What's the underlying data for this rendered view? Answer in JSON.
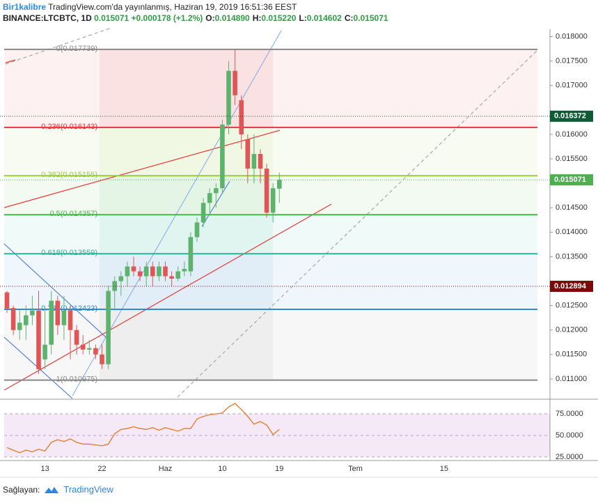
{
  "header": {
    "author": "Bir1kalibre",
    "published": "TradingView.com'da yayınlanmış, Haziran 19, 2019 16:51:36 EEST",
    "symbol": "BINANCE:LTCBTC, 1D",
    "last": "0.015071",
    "change": "+0.000178 (+1.2%)",
    "ohlc": [
      {
        "key": "O:",
        "value": "0.014890"
      },
      {
        "key": "H:",
        "value": "0.015220"
      },
      {
        "key": "L:",
        "value": "0.014602"
      },
      {
        "key": "C:",
        "value": "0.015071"
      }
    ]
  },
  "footer": {
    "provider": "Sağlayan:",
    "brand": "TradingView"
  },
  "chart_data": {
    "type": "candlestick",
    "categories": [
      null,
      null,
      null,
      null,
      null,
      null,
      "13",
      null,
      null,
      null,
      null,
      null,
      null,
      null,
      null,
      "22",
      null,
      null,
      null,
      null,
      null,
      null,
      null,
      null,
      null,
      "Haz",
      null,
      null,
      null,
      null,
      null,
      null,
      null,
      null,
      "10",
      null,
      null,
      null,
      null,
      null,
      null,
      null,
      null,
      "19",
      null,
      null,
      null,
      null,
      null,
      null,
      null,
      null,
      null,
      null,
      null,
      "Tem",
      null,
      null,
      null,
      null,
      null,
      null,
      null,
      null,
      null,
      null,
      null,
      null,
      null,
      "15"
    ],
    "open": [
      0.01277,
      0.01245,
      0.012,
      0.0121,
      0.0123,
      0.0124,
      0.0114,
      0.0117,
      0.0126,
      0.0121,
      0.0124,
      0.012,
      0.0117,
      0.0116,
      0.01163,
      0.0115,
      0.0113,
      0.0128,
      0.013,
      0.0131,
      0.0133,
      0.0132,
      0.0131,
      0.0133,
      0.0131,
      0.0133,
      0.0131,
      0.01305,
      0.0132,
      0.0132,
      0.0139,
      0.0142,
      0.0146,
      0.0148,
      0.0149,
      0.0162,
      0.0173,
      0.0167,
      0.0159,
      0.0153,
      0.0156,
      0.0153,
      0.0144,
      0.01489,
      null,
      null,
      null,
      null,
      null,
      null,
      null,
      null,
      null,
      null,
      null,
      null,
      null,
      null,
      null,
      null,
      null,
      null,
      null,
      null,
      null,
      null,
      null,
      null,
      null,
      null
    ],
    "high": [
      0.0128,
      0.0125,
      0.0124,
      0.0125,
      0.0127,
      0.0128,
      0.0124,
      0.0128,
      0.0127,
      0.0127,
      0.0125,
      0.0121,
      0.0119,
      0.0118,
      0.0117,
      0.0117,
      0.0129,
      0.0131,
      0.0132,
      0.0134,
      0.0135,
      0.0133,
      0.0134,
      0.0134,
      0.0134,
      0.0134,
      0.0132,
      0.0133,
      0.0134,
      0.014,
      0.0143,
      0.0147,
      0.0149,
      0.015,
      0.0163,
      0.0175,
      0.017739,
      0.0168,
      0.016,
      0.016,
      0.0157,
      0.0154,
      0.015,
      0.01522,
      null,
      null,
      null,
      null,
      null,
      null,
      null,
      null,
      null,
      null,
      null,
      null,
      null,
      null,
      null,
      null,
      null,
      null,
      null,
      null,
      null,
      null,
      null,
      null,
      null,
      null
    ],
    "low": [
      0.01235,
      0.0119,
      0.0118,
      0.0118,
      0.0121,
      0.0111,
      0.0112,
      0.0115,
      0.0119,
      0.0118,
      0.0114,
      0.0115,
      0.0115,
      0.0115,
      0.0114,
      0.0112,
      0.0112,
      0.0124,
      0.0127,
      0.0129,
      0.0131,
      0.013,
      0.0129,
      0.0129,
      0.013,
      0.013,
      0.0129,
      0.013,
      0.0131,
      0.0131,
      0.0138,
      0.0141,
      0.0144,
      0.0145,
      0.0148,
      0.016,
      0.0166,
      0.0157,
      0.015,
      0.015,
      0.015,
      0.0143,
      0.0142,
      0.014602,
      null,
      null,
      null,
      null,
      null,
      null,
      null,
      null,
      null,
      null,
      null,
      null,
      null,
      null,
      null,
      null,
      null,
      null,
      null,
      null,
      null,
      null,
      null,
      null,
      null,
      null
    ],
    "close": [
      0.01244,
      0.012,
      0.01215,
      0.0123,
      0.0124,
      0.0112,
      0.0117,
      0.0126,
      0.0121,
      0.0124,
      0.012,
      0.0117,
      0.0116,
      0.01163,
      0.0115,
      0.0113,
      0.0128,
      0.013,
      0.0131,
      0.0133,
      0.0132,
      0.0131,
      0.0133,
      0.0131,
      0.0133,
      0.0131,
      0.01305,
      0.0132,
      0.01325,
      0.0139,
      0.0142,
      0.0146,
      0.0148,
      0.0149,
      0.0162,
      0.0173,
      0.0168,
      0.016,
      0.0153,
      0.0156,
      0.0153,
      0.0144,
      0.0149,
      0.015071,
      null,
      null,
      null,
      null,
      null,
      null,
      null,
      null,
      null,
      null,
      null,
      null,
      null,
      null,
      null,
      null,
      null,
      null,
      null,
      null,
      null,
      null,
      null,
      null,
      null,
      null
    ],
    "up_color": "#5db36e",
    "down_color": "#e05555",
    "ylim": [
      0.0106,
      0.01815
    ],
    "yticks": [
      {
        "value": 0.018,
        "label": "0.018000"
      },
      {
        "value": 0.0175,
        "label": "0.017500"
      },
      {
        "value": 0.017,
        "label": "0.017000"
      },
      {
        "value": 0.016,
        "label": "0.016000"
      },
      {
        "value": 0.0155,
        "label": "0.015500"
      },
      {
        "value": 0.0145,
        "label": "0.014500"
      },
      {
        "value": 0.014,
        "label": "0.014000"
      },
      {
        "value": 0.0135,
        "label": "0.013500"
      },
      {
        "value": 0.0125,
        "label": "0.012500"
      },
      {
        "value": 0.012,
        "label": "0.012000"
      },
      {
        "value": 0.0115,
        "label": "0.011500"
      },
      {
        "value": 0.011,
        "label": "0.011000"
      }
    ],
    "fib_levels": [
      {
        "label": "0(0.017739)",
        "value": 0.017739,
        "color": "#888888"
      },
      {
        "label": "0.236(0.016143)",
        "value": 0.016143,
        "color": "#e53935"
      },
      {
        "label": "0.382(0.015155)",
        "value": 0.015155,
        "color": "#9ccc3c"
      },
      {
        "label": "0.5(0.014357)",
        "value": 0.014357,
        "color": "#43b947"
      },
      {
        "label": "0.618(0.013559)",
        "value": 0.013559,
        "color": "#26b59a"
      },
      {
        "label": "0.786(0.012423)",
        "value": 0.012423,
        "color": "#2e8bd0"
      },
      {
        "label": "1(0.010975)",
        "value": 0.010975,
        "color": "#888888"
      }
    ],
    "price_badges": [
      {
        "value": 0.016372,
        "color": "#0d5c36"
      },
      {
        "value": 0.015071,
        "color": "#4caf50"
      },
      {
        "value": 0.012894,
        "color": "#7b0a0a"
      }
    ],
    "rsi": {
      "values": [
        36,
        33,
        30,
        33,
        31,
        34,
        32,
        42,
        45,
        43,
        46,
        42,
        40,
        40,
        39,
        38,
        40,
        52,
        57,
        58,
        60,
        58,
        57,
        59,
        56,
        59,
        57,
        55,
        58,
        58,
        69,
        72,
        74,
        75,
        76,
        83,
        87,
        80,
        72,
        63,
        66,
        62,
        51,
        57,
        null,
        null,
        null,
        null,
        null,
        null,
        null,
        null,
        null,
        null,
        null,
        null,
        null,
        null,
        null,
        null,
        null,
        null,
        null,
        null,
        null,
        null,
        null,
        null,
        null,
        null
      ],
      "color": "#e87722",
      "ylim": [
        21.8,
        90.3
      ],
      "yticks": [
        {
          "value": 75,
          "label": "75.0000"
        },
        {
          "value": 50,
          "label": "50.0000"
        },
        {
          "value": 25,
          "label": "25.0000"
        }
      ]
    }
  }
}
